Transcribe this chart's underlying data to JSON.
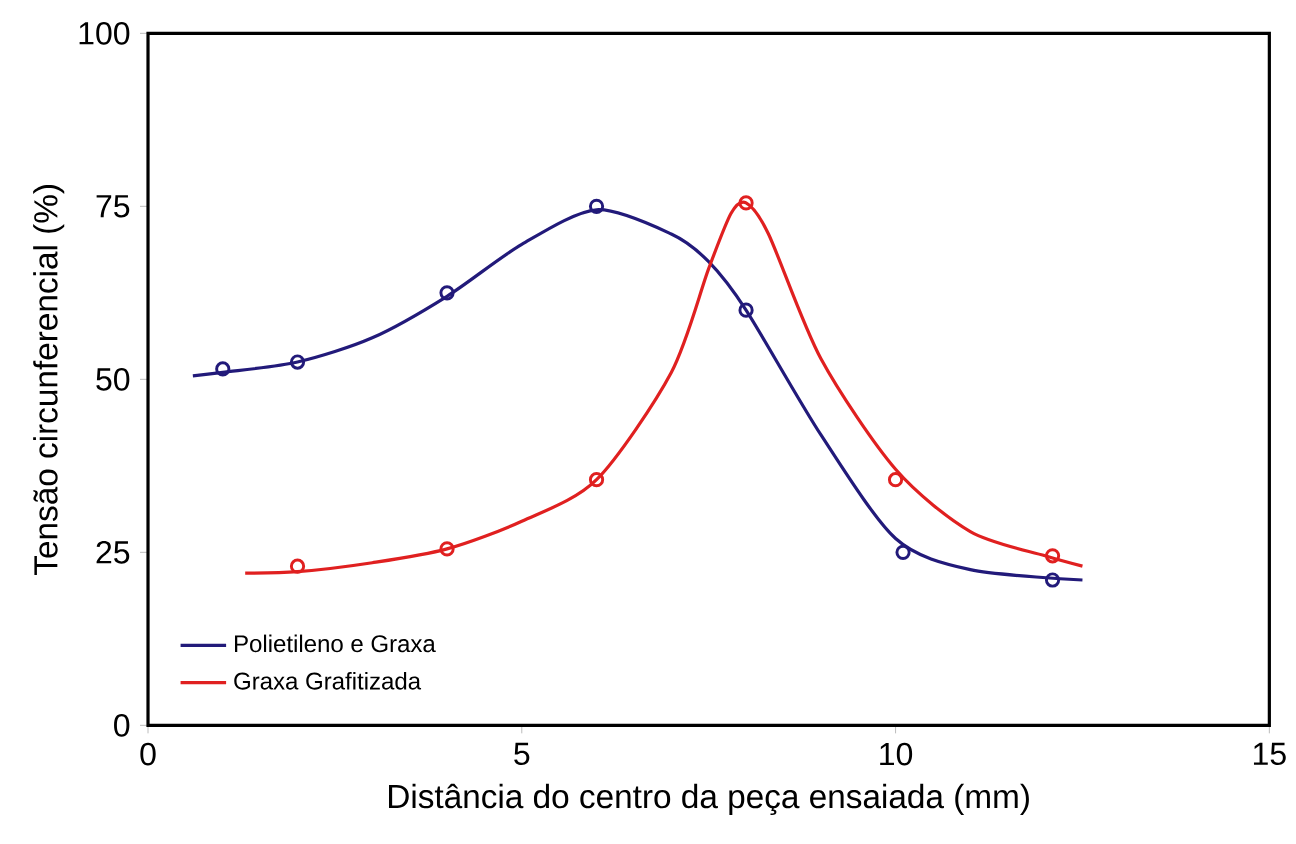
{
  "chart_data": {
    "type": "line",
    "xlabel": "Distância do centro da peça ensaiada (mm)",
    "ylabel": "Tensão circunferencial (%)",
    "xlim": [
      0,
      15
    ],
    "ylim": [
      0,
      100
    ],
    "xticks": [
      0,
      5,
      10,
      15
    ],
    "yticks": [
      0,
      25,
      50,
      75,
      100
    ],
    "grid": false,
    "legend": "bottom left",
    "series": [
      {
        "name": "Polietileno e Graxa",
        "color": "#221a7a",
        "marker": "none",
        "x": [
          0.6,
          1,
          2,
          3,
          4,
          5,
          6,
          7,
          7.5,
          8,
          9,
          10,
          11,
          12.5
        ],
        "values": [
          50.5,
          51,
          52.5,
          56,
          62,
          69.5,
          74.5,
          71,
          67,
          60,
          42,
          27,
          22.5,
          21
        ]
      },
      {
        "name": "Graxa Grafitizada",
        "color": "#e02020",
        "marker": "none",
        "x": [
          1.3,
          2,
          3,
          4,
          5,
          6,
          7,
          7.5,
          7.8,
          8,
          8.3,
          9,
          10,
          11,
          12,
          12.5
        ],
        "values": [
          22,
          22.2,
          23.5,
          25.5,
          29.5,
          35.5,
          51,
          66,
          74,
          75.5,
          71,
          53,
          37,
          28,
          24.5,
          23
        ]
      },
      {
        "color": "#221a7a",
        "type": "scatter",
        "marker": "circle",
        "x": [
          1,
          2,
          4,
          6,
          8,
          10.1,
          12.1
        ],
        "values": [
          51.5,
          52.5,
          62.5,
          75,
          60,
          25,
          21
        ]
      },
      {
        "color": "#e02020",
        "type": "scatter",
        "marker": "circle",
        "x": [
          2,
          4,
          6,
          8,
          10,
          12.1
        ],
        "values": [
          23,
          25.5,
          35.5,
          75.5,
          35.5,
          24.5
        ]
      }
    ]
  }
}
